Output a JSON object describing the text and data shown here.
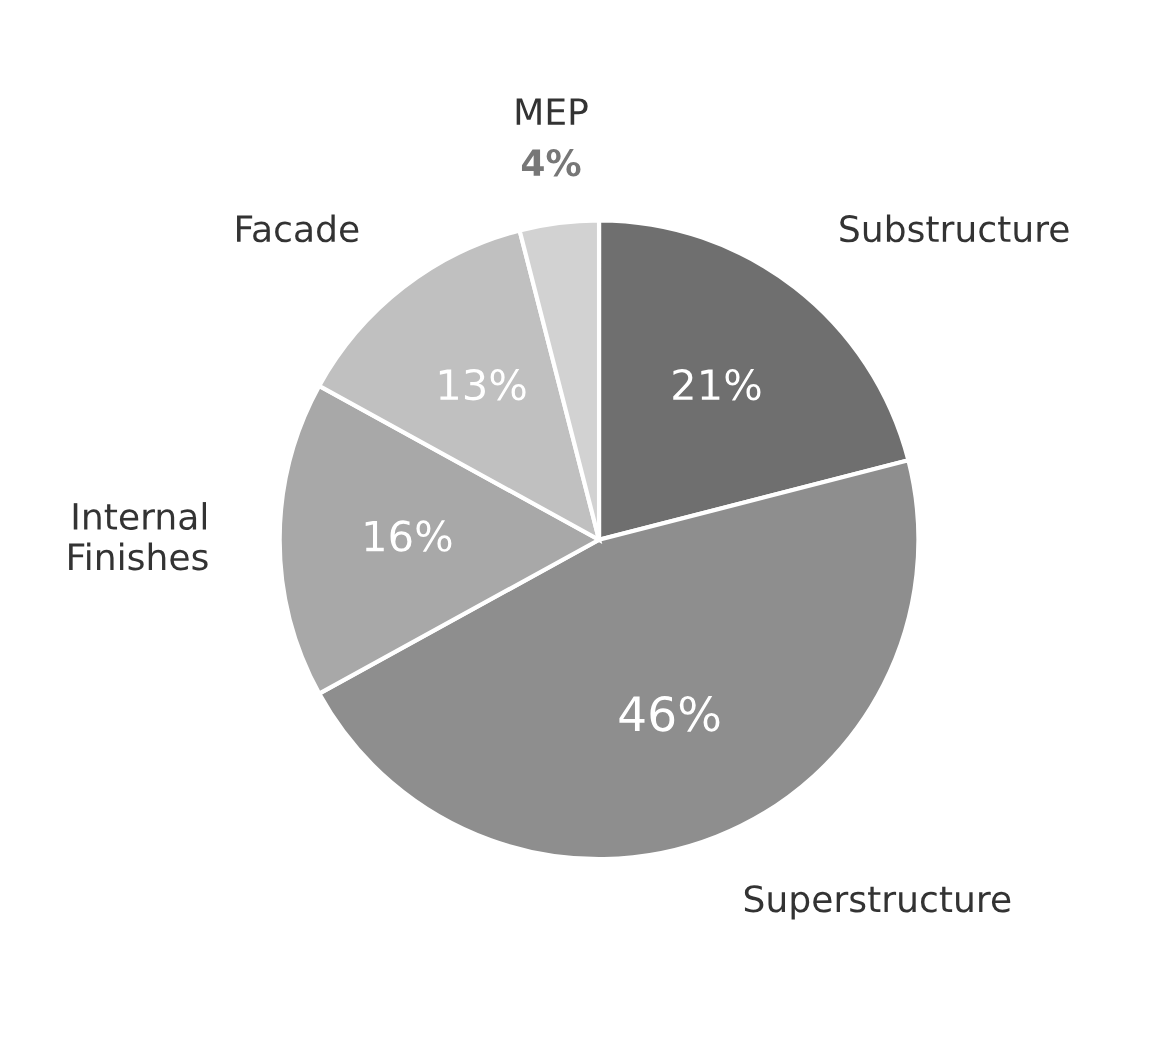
{
  "chart_data": {
    "type": "pie",
    "categories": [
      "Substructure",
      "Superstructure",
      "Internal\nFinishes",
      "Facade",
      "MEP"
    ],
    "values": [
      21,
      46,
      16,
      13,
      4
    ],
    "colors": [
      "#6f6f6f",
      "#8e8e8e",
      "#a8a8a8",
      "#c0c0c0",
      "#d2d2d2"
    ],
    "value_labels": [
      "21%",
      "46%",
      "16%",
      "13%",
      "4%"
    ]
  }
}
